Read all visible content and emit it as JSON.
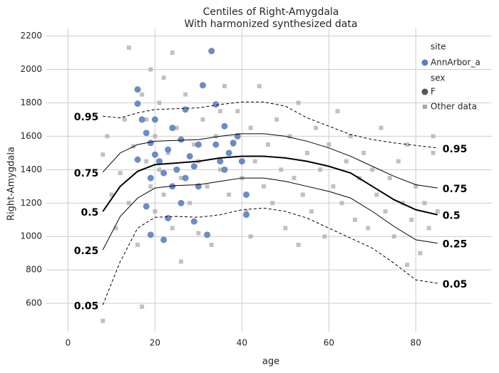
{
  "chart_data": {
    "type": "scatter",
    "title": "Centiles of Right-Amygdala",
    "subtitle": "With harmonized synthesized data",
    "xlabel": "age",
    "ylabel": "Right-Amygdala",
    "xlim": [
      -5,
      97.5
    ],
    "ylim": [
      430,
      2245
    ],
    "xticks": [
      0,
      20,
      40,
      60,
      80
    ],
    "yticks": [
      600,
      800,
      1000,
      1200,
      1400,
      1600,
      1800,
      2000,
      2200
    ],
    "grid": true,
    "legend": {
      "site": "site",
      "sex": "sex",
      "sex_value": "F",
      "sex_color": "#555555"
    },
    "series": [
      {
        "name": "Other data",
        "color": "#a6a6a6",
        "marker": "square",
        "x": [
          8,
          8,
          9,
          10,
          11,
          12,
          13,
          14,
          15,
          16,
          17,
          18,
          18,
          19,
          19,
          20,
          20,
          21,
          21,
          22,
          22,
          23,
          24,
          25,
          26,
          27,
          28,
          29,
          30,
          31,
          32,
          33,
          34,
          35,
          36,
          37,
          38,
          39,
          40,
          41,
          42,
          43,
          44,
          45,
          46,
          47,
          48,
          49,
          50,
          51,
          52,
          53,
          54,
          55,
          56,
          57,
          58,
          59,
          60,
          61,
          62,
          63,
          64,
          65,
          66,
          67,
          68,
          69,
          70,
          71,
          72,
          73,
          74,
          75,
          76,
          77,
          78,
          79,
          80,
          81,
          82,
          83,
          84,
          85,
          24,
          14,
          17,
          26,
          30,
          35,
          42,
          53,
          78,
          84
        ],
        "y": [
          1490,
          495,
          1600,
          1250,
          1050,
          1380,
          1700,
          1200,
          1540,
          950,
          1850,
          1450,
          1700,
          1300,
          2000,
          1150,
          1600,
          1400,
          1800,
          1250,
          1950,
          1500,
          1050,
          1650,
          1350,
          1850,
          1200,
          1550,
          1450,
          1700,
          1300,
          950,
          1600,
          1400,
          1900,
          1250,
          1550,
          1750,
          1350,
          1150,
          1650,
          1450,
          1900,
          1300,
          1550,
          1200,
          1700,
          1400,
          1050,
          1600,
          1350,
          1800,
          1250,
          1500,
          1150,
          1650,
          1400,
          1000,
          1550,
          1300,
          1750,
          1200,
          1450,
          1600,
          1100,
          1350,
          1500,
          1050,
          1400,
          1250,
          1650,
          1150,
          1350,
          1000,
          1450,
          1200,
          1550,
          1100,
          1300,
          900,
          1200,
          1050,
          1500,
          1150,
          2100,
          2130,
          580,
          850,
          1020,
          1750,
          1000,
          950,
          830,
          1600
        ]
      },
      {
        "name": "AnnArbor_a",
        "color": "#5b80c0",
        "marker": "circle",
        "x": [
          16,
          16,
          17,
          18,
          19,
          20,
          21,
          22,
          23,
          24,
          25,
          26,
          27,
          28,
          29,
          30,
          31,
          32,
          33,
          34,
          35,
          36,
          37,
          38,
          39,
          40,
          41,
          41,
          19,
          22,
          29,
          18,
          20,
          24,
          26,
          34,
          30,
          36,
          23,
          27,
          16,
          19
        ],
        "y": [
          1880,
          1795,
          1700,
          1620,
          1560,
          1490,
          1450,
          1380,
          1520,
          1300,
          1400,
          1580,
          1350,
          1480,
          1420,
          1550,
          1905,
          1010,
          2110,
          1790,
          1450,
          1400,
          1500,
          1560,
          1600,
          1450,
          1250,
          1130,
          1010,
          980,
          1090,
          1180,
          1700,
          1650,
          1200,
          1550,
          1300,
          1660,
          1110,
          1760,
          1460,
          1350
        ]
      }
    ],
    "centiles": {
      "x": [
        8,
        12,
        16,
        20,
        25,
        30,
        35,
        40,
        45,
        50,
        55,
        60,
        65,
        70,
        75,
        80,
        85
      ],
      "lines": [
        {
          "name": "0.05",
          "dashed": true,
          "width": 1,
          "values": [
            590,
            850,
            1050,
            1115,
            1120,
            1115,
            1130,
            1160,
            1170,
            1150,
            1110,
            1050,
            990,
            930,
            840,
            740,
            720
          ]
        },
        {
          "name": "0.25",
          "dashed": false,
          "width": 1,
          "values": [
            920,
            1120,
            1230,
            1290,
            1305,
            1310,
            1330,
            1350,
            1350,
            1330,
            1300,
            1270,
            1230,
            1150,
            1060,
            980,
            960
          ]
        },
        {
          "name": "0.5",
          "dashed": false,
          "width": 2,
          "values": [
            1150,
            1300,
            1390,
            1430,
            1440,
            1450,
            1470,
            1480,
            1480,
            1470,
            1450,
            1420,
            1380,
            1300,
            1220,
            1160,
            1130
          ]
        },
        {
          "name": "0.75",
          "dashed": false,
          "width": 1,
          "values": [
            1385,
            1500,
            1550,
            1570,
            1575,
            1580,
            1600,
            1615,
            1615,
            1600,
            1570,
            1530,
            1480,
            1420,
            1360,
            1310,
            1290
          ]
        },
        {
          "name": "0.95",
          "dashed": true,
          "width": 1,
          "values": [
            1720,
            1710,
            1740,
            1760,
            1765,
            1770,
            1790,
            1805,
            1805,
            1780,
            1710,
            1660,
            1610,
            1580,
            1560,
            1545,
            1530
          ]
        }
      ]
    }
  }
}
